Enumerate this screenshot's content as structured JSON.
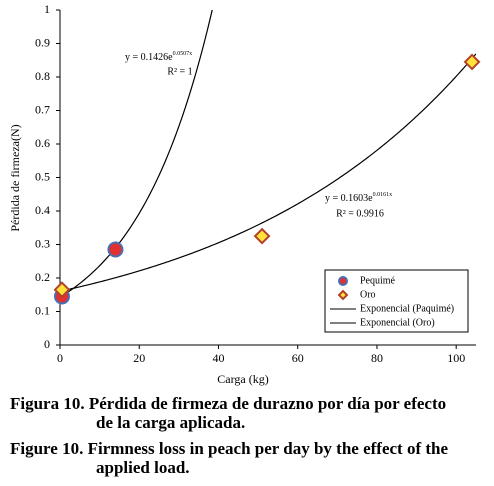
{
  "chart_data": {
    "type": "scatter",
    "xlabel": "Carga (kg)",
    "ylabel": "Pérdida de firmeza(N)",
    "xlim": [
      0,
      105
    ],
    "xticks": [
      0,
      20,
      40,
      60,
      80,
      100
    ],
    "ylim": [
      0,
      1
    ],
    "yticks": [
      0,
      0.1,
      0.2,
      0.3,
      0.4,
      0.5,
      0.6,
      0.7,
      0.8,
      0.9,
      1
    ],
    "series": [
      {
        "name": "Pequimé",
        "marker": "circle",
        "color": "#e0312f",
        "edge_color": "#4a6db3",
        "x": [
          0.5,
          14
        ],
        "values": [
          0.145,
          0.285
        ]
      },
      {
        "name": "Oro",
        "marker": "diamond",
        "color": "#ffe23a",
        "edge_color": "#b2432b",
        "x": [
          0.5,
          51,
          104
        ],
        "values": [
          0.165,
          0.325,
          0.845
        ]
      }
    ],
    "trendlines": [
      {
        "name": "Exponencial (Paquimé)",
        "a": 0.1426,
        "b": 0.0507,
        "color": "#000000",
        "equation": "y = 0.1426e",
        "exponent": "0.0507x",
        "r2": "R² = 1"
      },
      {
        "name": "Exponencial (Oro)",
        "a": 0.1603,
        "b": 0.0161,
        "color": "#000000",
        "equation": "y = 0.1603e",
        "exponent": "0.0161x",
        "r2": "R² = 0.9916"
      }
    ]
  },
  "caption": {
    "es": [
      "Figura 10. Pérdida de firmeza de durazno por día por efecto",
      "de la carga aplicada."
    ],
    "en": [
      "Figure 10. Firmness loss in peach per day by the effect of the",
      "applied load."
    ]
  }
}
